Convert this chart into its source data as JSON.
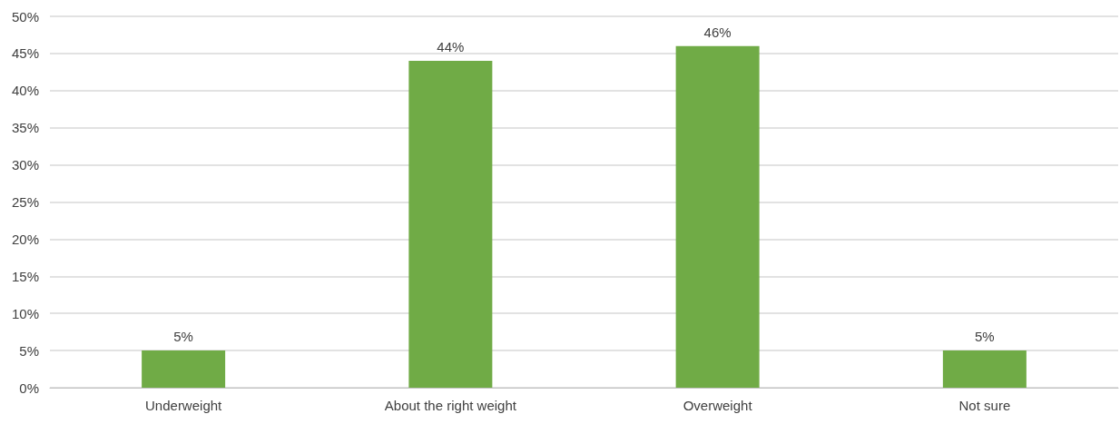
{
  "chart_data": {
    "type": "bar",
    "categories": [
      "Underweight",
      "About the right weight",
      "Overweight",
      "Not sure"
    ],
    "values": [
      5,
      44,
      46,
      5
    ],
    "value_labels": [
      "5%",
      "44%",
      "46%",
      "5%"
    ],
    "color": "#70ab46",
    "ylim": [
      0,
      50
    ],
    "yticks": [
      {
        "value": 0,
        "label": "0%"
      },
      {
        "value": 5,
        "label": "5%"
      },
      {
        "value": 10,
        "label": "10%"
      },
      {
        "value": 15,
        "label": "15%"
      },
      {
        "value": 20,
        "label": "20%"
      },
      {
        "value": 25,
        "label": "25%"
      },
      {
        "value": 30,
        "label": "30%"
      },
      {
        "value": 35,
        "label": "35%"
      },
      {
        "value": 40,
        "label": "40%"
      },
      {
        "value": 45,
        "label": "45%"
      },
      {
        "value": 50,
        "label": "50%"
      }
    ],
    "grid": "y"
  }
}
